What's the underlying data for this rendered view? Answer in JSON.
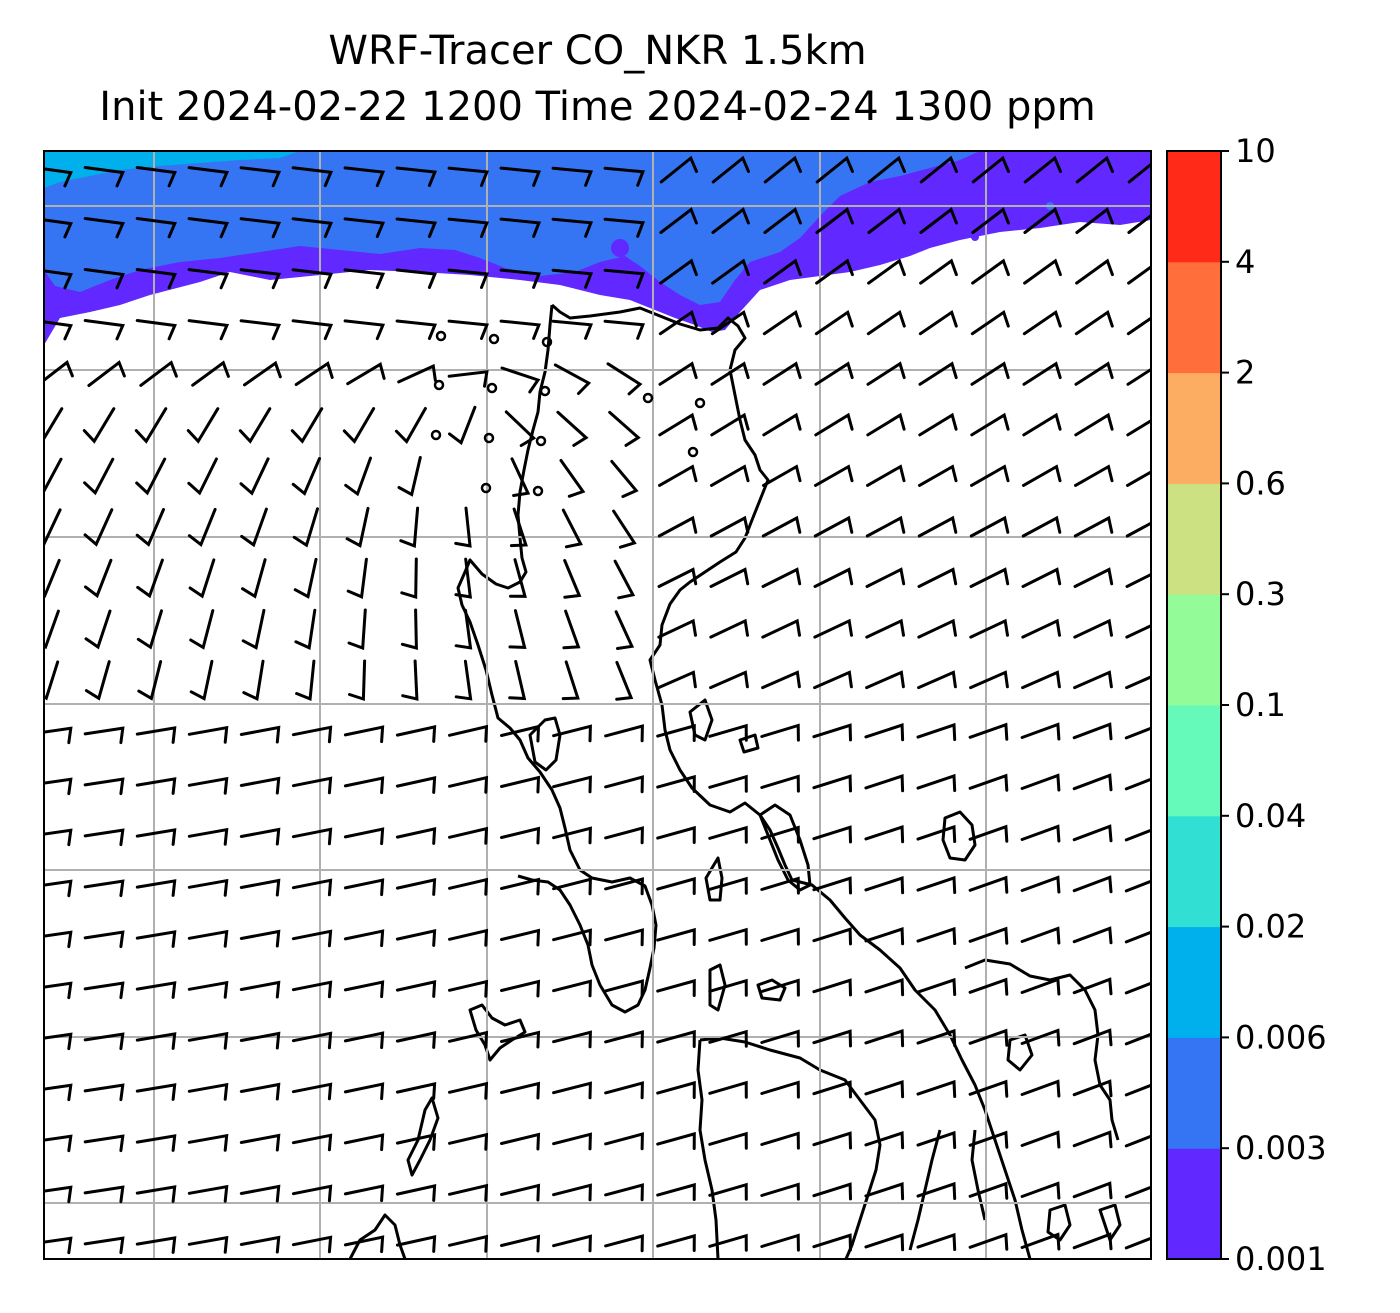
{
  "title": {
    "line1": "WRF-Tracer CO_NKR 1.5km",
    "line2": "Init 2024-02-22 1200 Time 2024-02-24 1300 ppm"
  },
  "colorbar": {
    "levels": [
      "0.001",
      "0.003",
      "0.006",
      "0.02",
      "0.04",
      "0.1",
      "0.3",
      "0.6",
      "2",
      "4",
      "10"
    ],
    "colors": [
      "#6128ff",
      "#3575f3",
      "#00b0ec",
      "#32dfd3",
      "#65fab9",
      "#93fb97",
      "#cbe182",
      "#fdad62",
      "#ff6e3b",
      "#ff2a17"
    ]
  },
  "map": {
    "concentration_band_colors": {
      "low": "#6128ff",
      "mid": "#3575f3",
      "high": "#00b0ec"
    },
    "wind_symbol": "barb",
    "calm_symbol": "circle",
    "coastline_color": "#000000",
    "gridline_color": "#b0b0b0"
  }
}
